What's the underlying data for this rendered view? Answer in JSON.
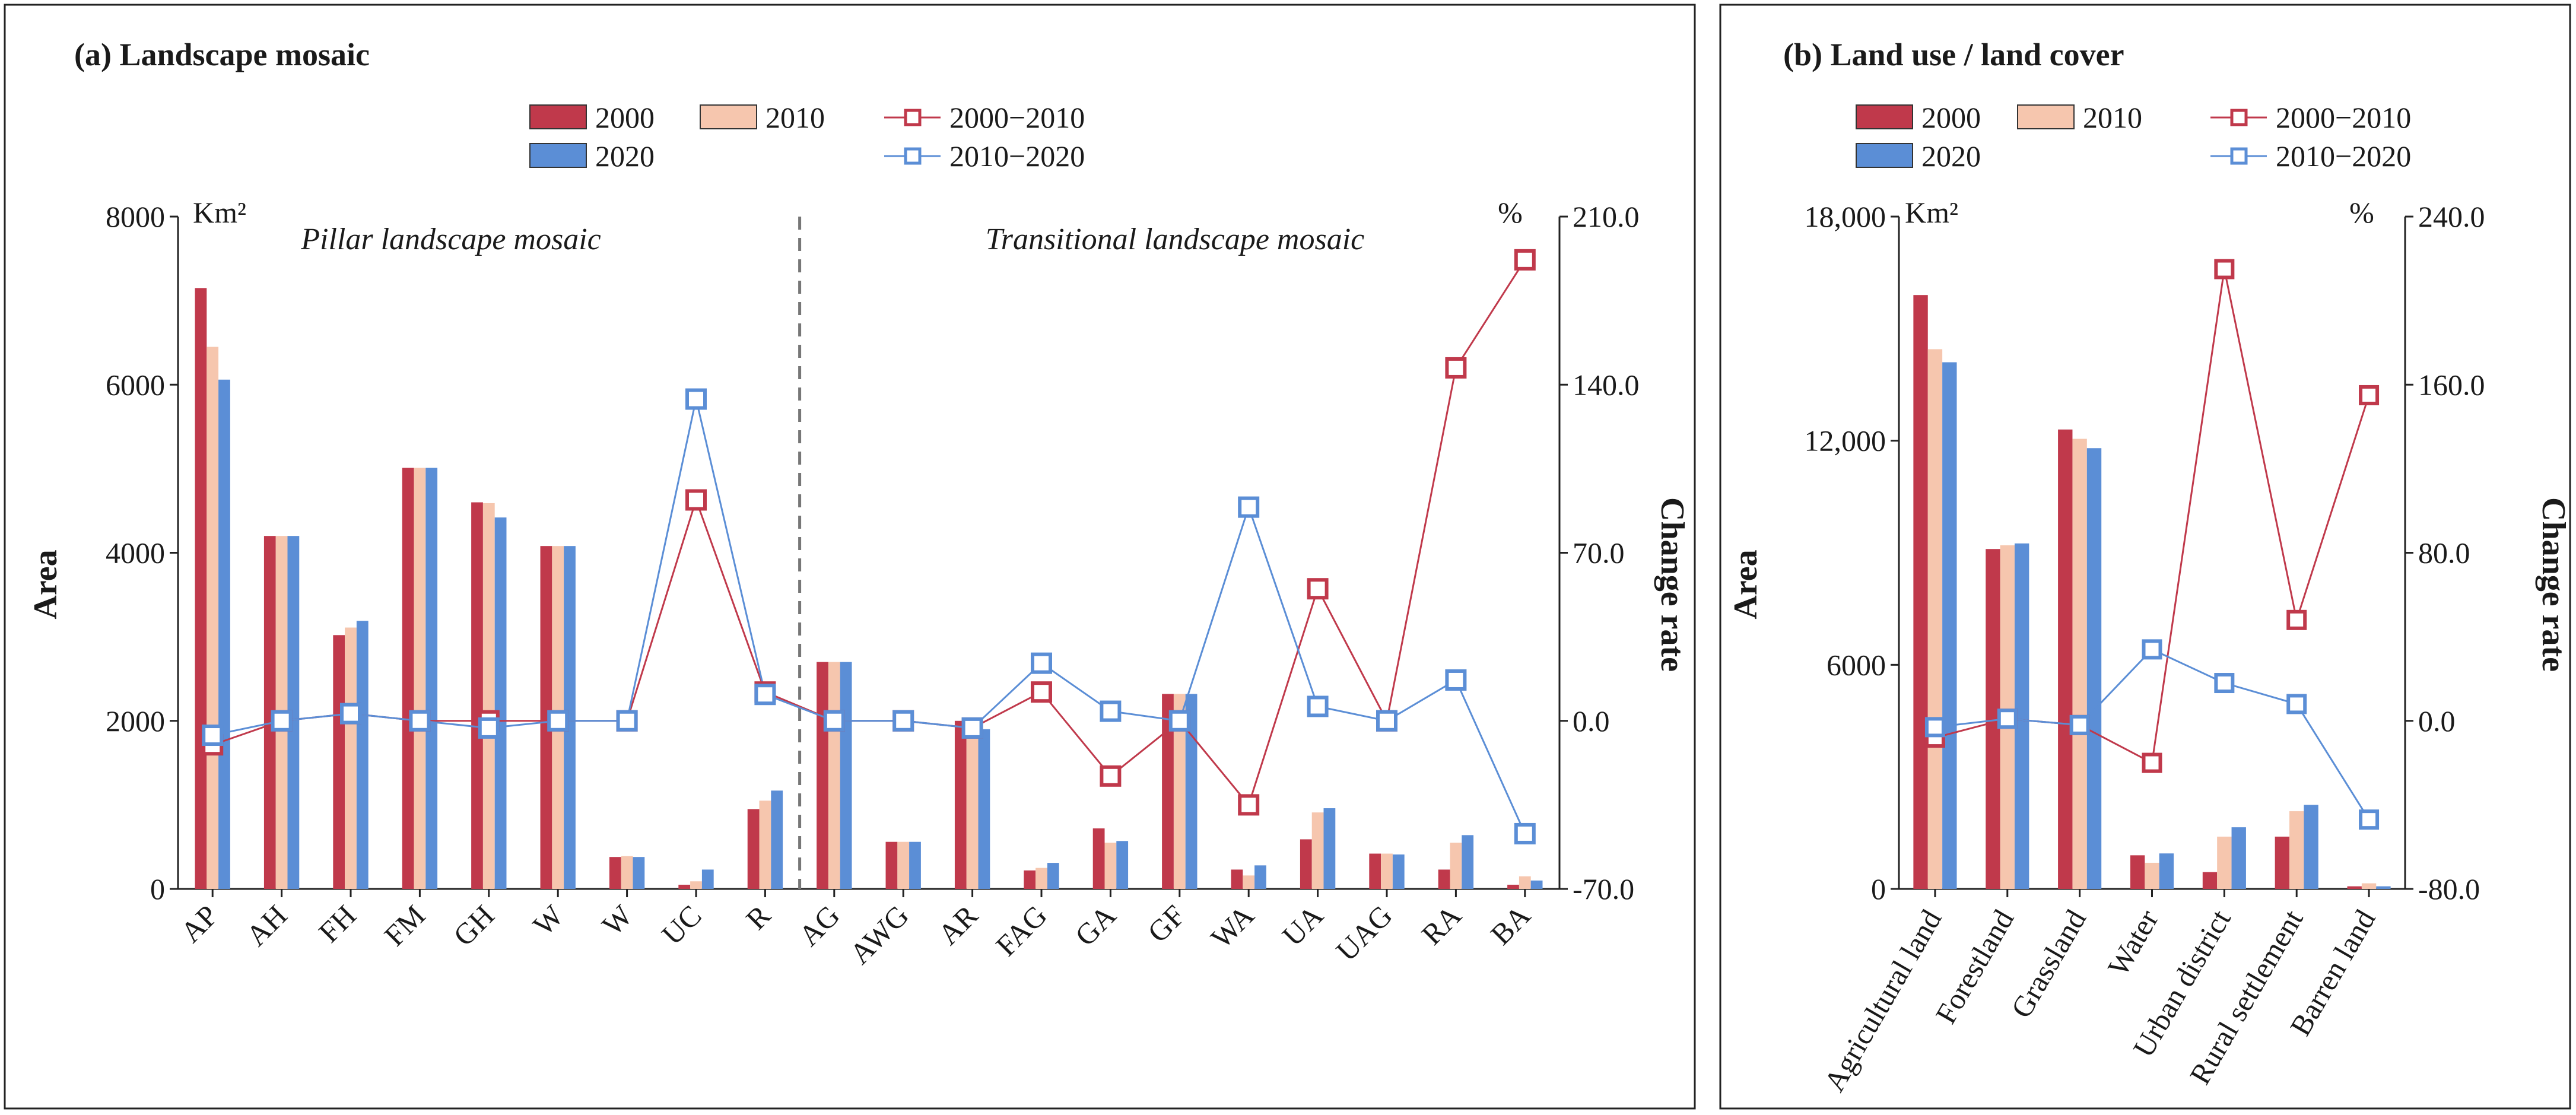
{
  "colors": {
    "y2000": "#c0394b",
    "y2010": "#f6c6ae",
    "y2020": "#5b8ed6",
    "line_2000_2010": "#c0394b",
    "line_2010_2020": "#5b8ed6"
  },
  "chart_data": [
    {
      "type": "bar",
      "title": "(a) Landscape mosaic",
      "left_unit": "Km²",
      "right_unit": "%",
      "ylabel": "Area",
      "y2label": "Change rate",
      "ylim": [
        0,
        8000
      ],
      "yticks": [
        "0",
        "2000",
        "4000",
        "6000",
        "8000"
      ],
      "y2lim": [
        -70,
        210
      ],
      "y2ticks": [
        "-70.0",
        "0.0",
        "70.0",
        "140.0",
        "210.0"
      ],
      "zones": [
        "Pillar landscape mosaic",
        "Transitional landscape mosaic"
      ],
      "zone_split_after_index": 8,
      "legend": {
        "bars": [
          "2000",
          "2010",
          "2020"
        ],
        "lines": [
          "2000−2010",
          "2010−2020"
        ]
      },
      "categories": [
        "AP",
        "AH",
        "FH",
        "FM",
        "GH",
        "W",
        "W",
        "UC",
        "R",
        "AG",
        "AWG",
        "AR",
        "FAG",
        "GA",
        "GF",
        "WA",
        "UA",
        "UAG",
        "RA",
        "BA"
      ],
      "series": [
        {
          "name": "2000",
          "values": [
            7150,
            4200,
            3020,
            5010,
            4600,
            4080,
            380,
            50,
            950,
            2700,
            560,
            2000,
            220,
            720,
            2320,
            230,
            590,
            420,
            230,
            50
          ]
        },
        {
          "name": "2010",
          "values": [
            6450,
            4200,
            3110,
            5010,
            4590,
            4080,
            390,
            90,
            1050,
            2700,
            560,
            1950,
            250,
            550,
            2320,
            160,
            910,
            420,
            550,
            150
          ]
        },
        {
          "name": "2020",
          "values": [
            6060,
            4200,
            3190,
            5010,
            4420,
            4080,
            380,
            230,
            1170,
            2700,
            560,
            1900,
            310,
            570,
            2320,
            280,
            960,
            410,
            640,
            100
          ]
        }
      ],
      "lines": [
        {
          "name": "2000−2010",
          "values": [
            -10,
            0,
            3,
            0,
            0,
            0,
            0,
            92,
            12,
            0,
            0,
            -3,
            12,
            -23,
            0,
            -35,
            55,
            0,
            147,
            192
          ]
        },
        {
          "name": "2010−2020",
          "values": [
            -6,
            0,
            3,
            0,
            -3,
            0,
            0,
            134,
            11,
            0,
            0,
            -3,
            24,
            4,
            0,
            89,
            6,
            0,
            17,
            -47
          ]
        }
      ]
    },
    {
      "type": "bar",
      "title": "(b) Land use / land cover",
      "left_unit": "Km²",
      "right_unit": "%",
      "ylabel": "Area",
      "y2label": "Change rate",
      "ylim": [
        0,
        18000
      ],
      "yticks": [
        "0",
        "6000",
        "12,000",
        "18,000"
      ],
      "y2lim": [
        -80,
        240
      ],
      "y2ticks": [
        "-80.0",
        "0.0",
        "80.0",
        "160.0",
        "240.0"
      ],
      "legend": {
        "bars": [
          "2000",
          "2010",
          "2020"
        ],
        "lines": [
          "2000−2010",
          "2010−2020"
        ]
      },
      "categories": [
        "Agricultural land",
        "Forestland",
        "Grassland",
        "Water",
        "Urban district",
        "Rural settlement",
        "Barren land"
      ],
      "series": [
        {
          "name": "2000",
          "values": [
            15900,
            9100,
            12300,
            900,
            450,
            1400,
            70
          ]
        },
        {
          "name": "2010",
          "values": [
            14450,
            9200,
            12050,
            700,
            1400,
            2080,
            150
          ]
        },
        {
          "name": "2020",
          "values": [
            14100,
            9250,
            11800,
            950,
            1650,
            2250,
            70
          ]
        }
      ],
      "lines": [
        {
          "name": "2000−2010",
          "values": [
            -8,
            1,
            -2,
            -20,
            215,
            48,
            155
          ]
        },
        {
          "name": "2010−2020",
          "values": [
            -3,
            1,
            -2,
            34,
            18,
            8,
            -47
          ]
        }
      ]
    }
  ]
}
